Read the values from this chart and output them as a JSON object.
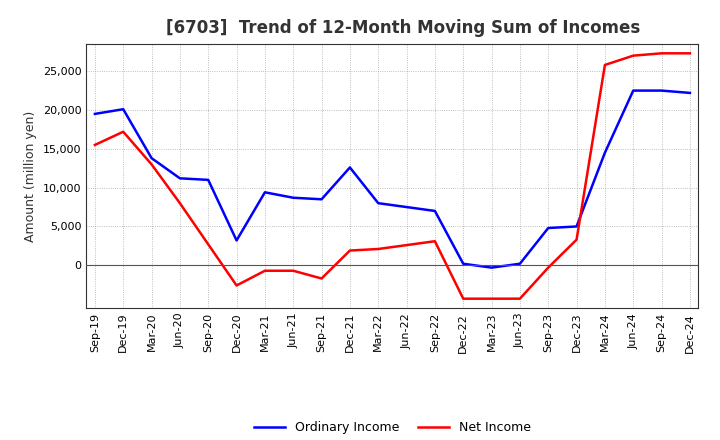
{
  "title": "[6703]  Trend of 12-Month Moving Sum of Incomes",
  "ylabel": "Amount (million yen)",
  "background_color": "#ffffff",
  "grid_color": "#888888",
  "x_labels": [
    "Sep-19",
    "Dec-19",
    "Mar-20",
    "Jun-20",
    "Sep-20",
    "Dec-20",
    "Mar-21",
    "Jun-21",
    "Sep-21",
    "Dec-21",
    "Mar-22",
    "Jun-22",
    "Sep-22",
    "Dec-22",
    "Mar-23",
    "Jun-23",
    "Sep-23",
    "Dec-23",
    "Mar-24",
    "Jun-24",
    "Sep-24",
    "Dec-24"
  ],
  "ordinary_income": [
    19500,
    20100,
    13800,
    11200,
    11000,
    3200,
    9400,
    8700,
    8500,
    12600,
    8000,
    7500,
    7000,
    200,
    -300,
    200,
    4800,
    5000,
    14500,
    22500,
    22500,
    22200
  ],
  "net_income": [
    15500,
    17200,
    13000,
    8000,
    null,
    -2600,
    -700,
    -700,
    -1700,
    1900,
    2100,
    2600,
    3100,
    -4300,
    -4300,
    -4300,
    -300,
    3300,
    25800,
    27000,
    27300,
    27300
  ],
  "ordinary_color": "#0000ff",
  "net_color": "#ff0000",
  "line_width": 1.8,
  "ylim_min": -5500,
  "ylim_max": 28500,
  "yticks": [
    0,
    5000,
    10000,
    15000,
    20000,
    25000
  ],
  "title_fontsize": 12,
  "title_color": "#333333",
  "axis_fontsize": 8,
  "ylabel_fontsize": 9,
  "legend_fontsize": 9
}
